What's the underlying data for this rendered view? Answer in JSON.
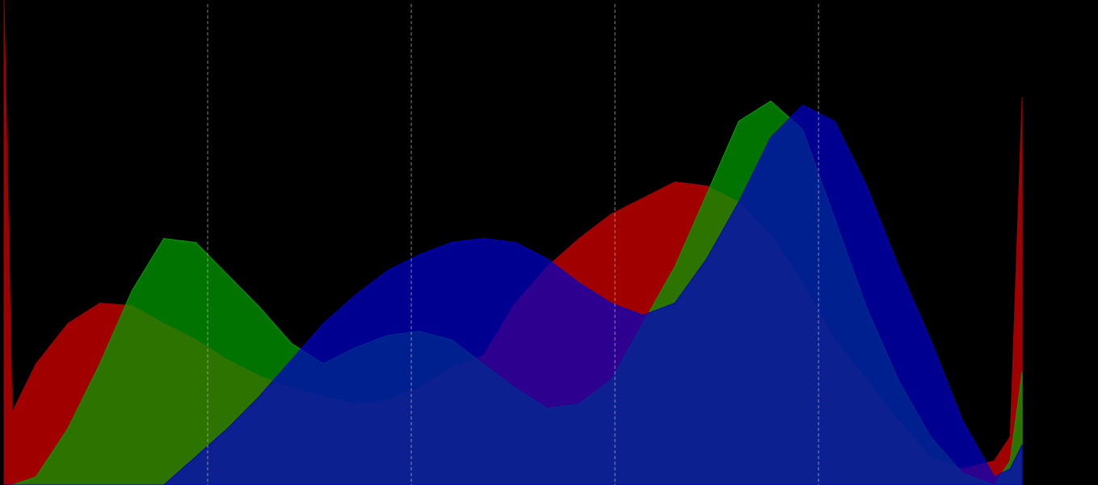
{
  "chart_data": {
    "type": "area",
    "x": [
      0,
      2,
      8,
      16,
      24,
      32,
      40,
      48,
      56,
      64,
      72,
      80,
      88,
      96,
      104,
      112,
      120,
      128,
      136,
      144,
      152,
      160,
      168,
      176,
      184,
      192,
      200,
      208,
      216,
      224,
      232,
      240,
      248,
      252,
      255
    ],
    "series": [
      {
        "name": "Red",
        "color": "#a00000",
        "values": [
          600,
          90,
          150,
          200,
          225,
          222,
          200,
          180,
          155,
          135,
          120,
          110,
          100,
          105,
          120,
          145,
          160,
          225,
          270,
          305,
          335,
          355,
          375,
          370,
          350,
          310,
          250,
          180,
          130,
          80,
          35,
          20,
          30,
          60,
          480
        ]
      },
      {
        "name": "Green",
        "color": "#00a000",
        "values": [
          0,
          0,
          10,
          70,
          150,
          240,
          305,
          300,
          260,
          220,
          175,
          150,
          170,
          185,
          190,
          180,
          150,
          120,
          95,
          100,
          130,
          200,
          270,
          360,
          450,
          475,
          440,
          330,
          220,
          130,
          60,
          15,
          0,
          30,
          140
        ]
      },
      {
        "name": "Blue",
        "color": "#0000c8",
        "values": [
          0,
          0,
          0,
          0,
          0,
          0,
          0,
          35,
          70,
          110,
          155,
          200,
          235,
          265,
          285,
          300,
          305,
          300,
          280,
          250,
          225,
          210,
          225,
          280,
          350,
          430,
          470,
          450,
          370,
          270,
          180,
          80,
          10,
          20,
          50
        ]
      }
    ],
    "fill_opacity": 0.72,
    "xlim": [
      0,
      274
    ],
    "xticks": [
      51,
      102,
      153,
      204
    ],
    "ylim": [
      0,
      600
    ],
    "grid": true
  }
}
